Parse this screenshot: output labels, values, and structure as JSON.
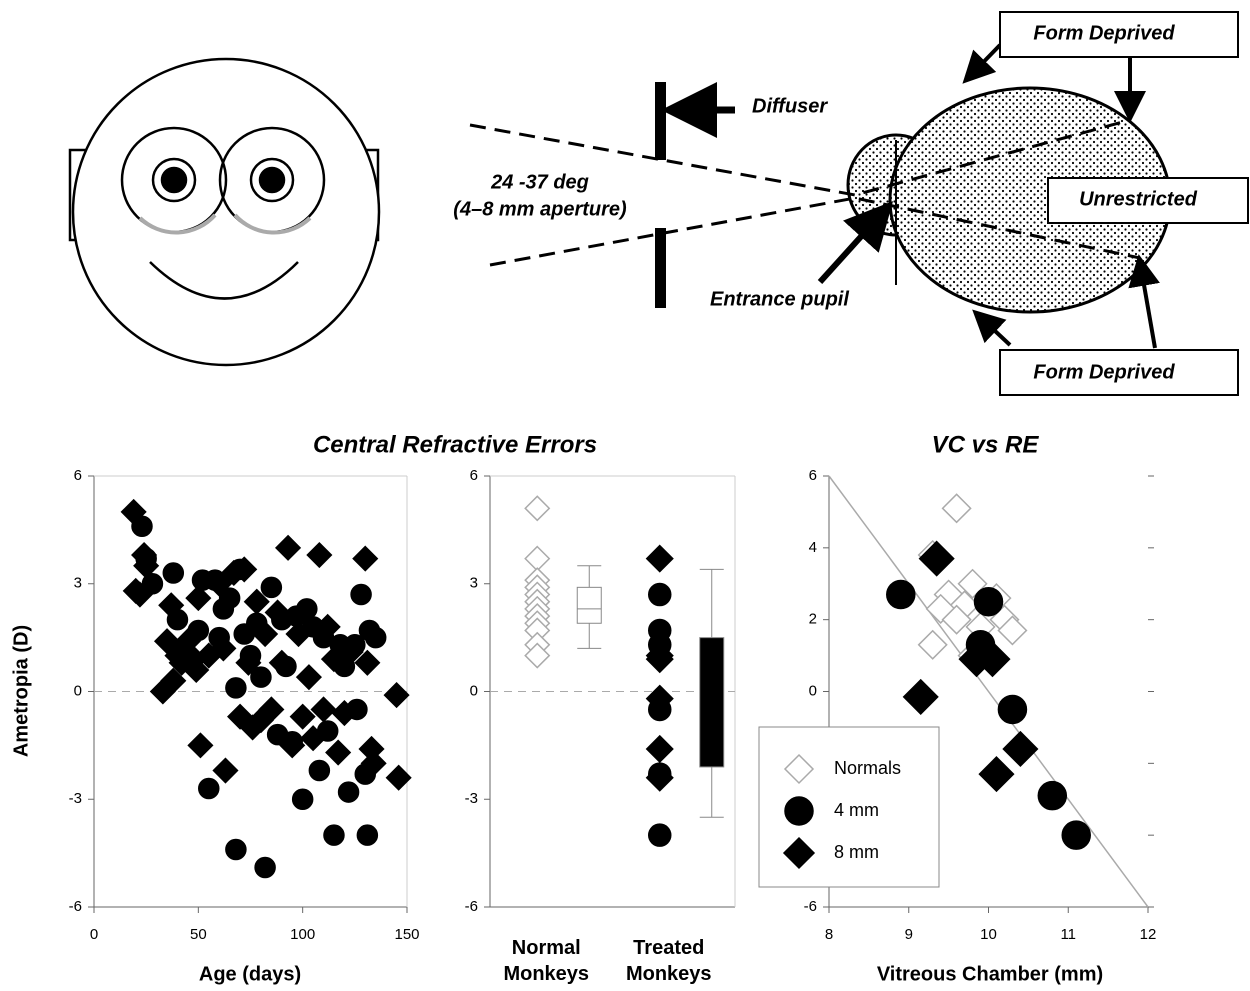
{
  "diagram": {
    "diffuser": "Diffuser",
    "angle": "24 -37 deg",
    "aperture": "(4–8 mm aperture)",
    "entrance_pupil": "Entrance pupil",
    "form_deprived_top": "Form Deprived",
    "unrestricted": "Unrestricted",
    "form_deprived_bottom": "Form Deprived"
  },
  "chart_data": [
    {
      "type": "scatter",
      "title": "Central Refractive Errors",
      "xlabel": "Age (days)",
      "ylabel": "Ametropia (D)",
      "xlim": [
        0,
        150
      ],
      "xticks": [
        0,
        50,
        100,
        150
      ],
      "ylim": [
        -6,
        6
      ],
      "yticks": [
        6,
        3,
        0,
        -3,
        -6
      ],
      "zero_line": true,
      "series": [
        {
          "marker": "circle",
          "color": "#000",
          "size": 10,
          "x": [
            23,
            25,
            28,
            38,
            40,
            45,
            50,
            52,
            55,
            58,
            60,
            62,
            65,
            68,
            68,
            70,
            72,
            75,
            78,
            80,
            82,
            85,
            88,
            90,
            92,
            95,
            97,
            100,
            102,
            105,
            108,
            110,
            112,
            115,
            118,
            120,
            122,
            125,
            126,
            128,
            130,
            131,
            132,
            135
          ],
          "values": [
            4.6,
            3.7,
            3.0,
            3.3,
            2.0,
            1.0,
            1.7,
            3.1,
            -2.7,
            3.1,
            1.5,
            2.3,
            2.6,
            0.1,
            -4.4,
            3.4,
            1.6,
            1.0,
            1.9,
            0.4,
            -4.9,
            2.9,
            -1.2,
            2.0,
            0.7,
            -1.4,
            2.1,
            -3.0,
            2.3,
            1.8,
            -2.2,
            1.5,
            -1.1,
            -4.0,
            1.3,
            0.7,
            -2.8,
            1.3,
            -0.5,
            2.7,
            -2.3,
            -4.0,
            1.7,
            1.5
          ]
        },
        {
          "marker": "diamond",
          "color": "#000",
          "size": 12,
          "x": [
            19,
            20,
            22,
            24,
            25,
            33,
            35,
            37,
            38,
            40,
            42,
            45,
            48,
            49,
            50,
            51,
            55,
            60,
            62,
            63,
            67,
            70,
            72,
            74,
            76,
            78,
            80,
            82,
            85,
            88,
            90,
            93,
            95,
            98,
            100,
            103,
            105,
            108,
            110,
            112,
            115,
            117,
            120,
            123,
            130,
            131,
            133,
            134,
            145,
            146
          ],
          "values": [
            5.0,
            2.8,
            2.7,
            3.8,
            3.5,
            0.0,
            1.4,
            2.4,
            0.3,
            1.0,
            0.8,
            1.4,
            0.9,
            0.6,
            2.6,
            -1.5,
            1.0,
            3.0,
            1.2,
            -2.2,
            3.3,
            -0.7,
            3.4,
            0.8,
            -1.0,
            2.5,
            -0.8,
            1.6,
            -0.5,
            2.2,
            0.8,
            4.0,
            -1.5,
            1.6,
            -0.7,
            0.4,
            -1.3,
            3.8,
            -0.5,
            1.8,
            0.9,
            -1.7,
            -0.6,
            1.1,
            3.7,
            0.8,
            -1.6,
            -2.0,
            -0.1,
            -2.4
          ]
        }
      ]
    },
    {
      "type": "box",
      "categories": [
        "Normal Monkeys",
        "Treated Monkeys"
      ],
      "ylim": [
        -6,
        6
      ],
      "yticks": [
        6,
        3,
        0,
        -3,
        -6
      ],
      "zero_line": true,
      "groups": [
        {
          "series": [
            {
              "marker": "diamond",
              "color": "#fff",
              "edgecolor": "#aaa",
              "size": 12,
              "values": [
                5.1,
                3.7,
                3.1,
                2.9,
                2.7,
                2.5,
                2.3,
                2.1,
                1.9,
                1.7,
                1.3,
                1.0
              ]
            }
          ],
          "box": {
            "whislo": 1.2,
            "q1": 1.9,
            "med": 2.3,
            "q3": 2.9,
            "whishi": 3.5,
            "color": "#fff"
          }
        },
        {
          "series": [
            {
              "marker": "circle",
              "color": "#000",
              "size": 11,
              "values": [
                2.7,
                1.7,
                1.3,
                -0.5,
                -2.3,
                -4.0
              ]
            },
            {
              "marker": "diamond",
              "color": "#000",
              "size": 13,
              "values": [
                3.7,
                1.0,
                0.9,
                -0.2,
                -1.6,
                -2.4
              ]
            }
          ],
          "box": {
            "whislo": -3.5,
            "q1": -2.1,
            "q3": 1.5,
            "whishi": 3.4,
            "color": "#000"
          }
        }
      ]
    },
    {
      "type": "scatter",
      "title": "VC vs RE",
      "xlabel": "Vitreous Chamber (mm)",
      "xlim": [
        8,
        12
      ],
      "xticks": [
        8,
        9,
        10,
        11,
        12
      ],
      "ylim": [
        -6,
        6
      ],
      "yticks": [
        6,
        4,
        2,
        0,
        -2,
        -4,
        -6
      ],
      "mirror_ticks": true,
      "legend": "lower left",
      "trendline": {
        "x": [
          8,
          12
        ],
        "y": [
          6,
          -6
        ]
      },
      "series": [
        {
          "name": "Normals",
          "marker": "diamond",
          "color": "#fff",
          "edgecolor": "#aaa",
          "size": 14,
          "x": [
            9.6,
            9.3,
            9.8,
            9.5,
            10.1,
            9.7,
            9.4,
            10.2,
            9.6,
            9.9,
            10.3,
            9.3,
            9.8
          ],
          "values": [
            5.1,
            3.8,
            3.0,
            2.7,
            2.6,
            2.4,
            2.3,
            2.0,
            2.0,
            1.8,
            1.7,
            1.3,
            1.0
          ]
        },
        {
          "name": "4 mm",
          "marker": "circle",
          "color": "#000",
          "size": 14,
          "x": [
            8.9,
            10.0,
            9.9,
            10.3,
            10.8,
            11.1
          ],
          "values": [
            2.7,
            2.5,
            1.3,
            -0.5,
            -2.9,
            -4.0
          ]
        },
        {
          "name": "8 mm",
          "marker": "diamond",
          "color": "#000",
          "size": 17,
          "x": [
            9.35,
            9.15,
            9.85,
            10.05,
            10.4,
            10.1
          ],
          "values": [
            3.7,
            -0.15,
            0.9,
            0.9,
            -1.6,
            -2.3
          ]
        }
      ]
    }
  ]
}
